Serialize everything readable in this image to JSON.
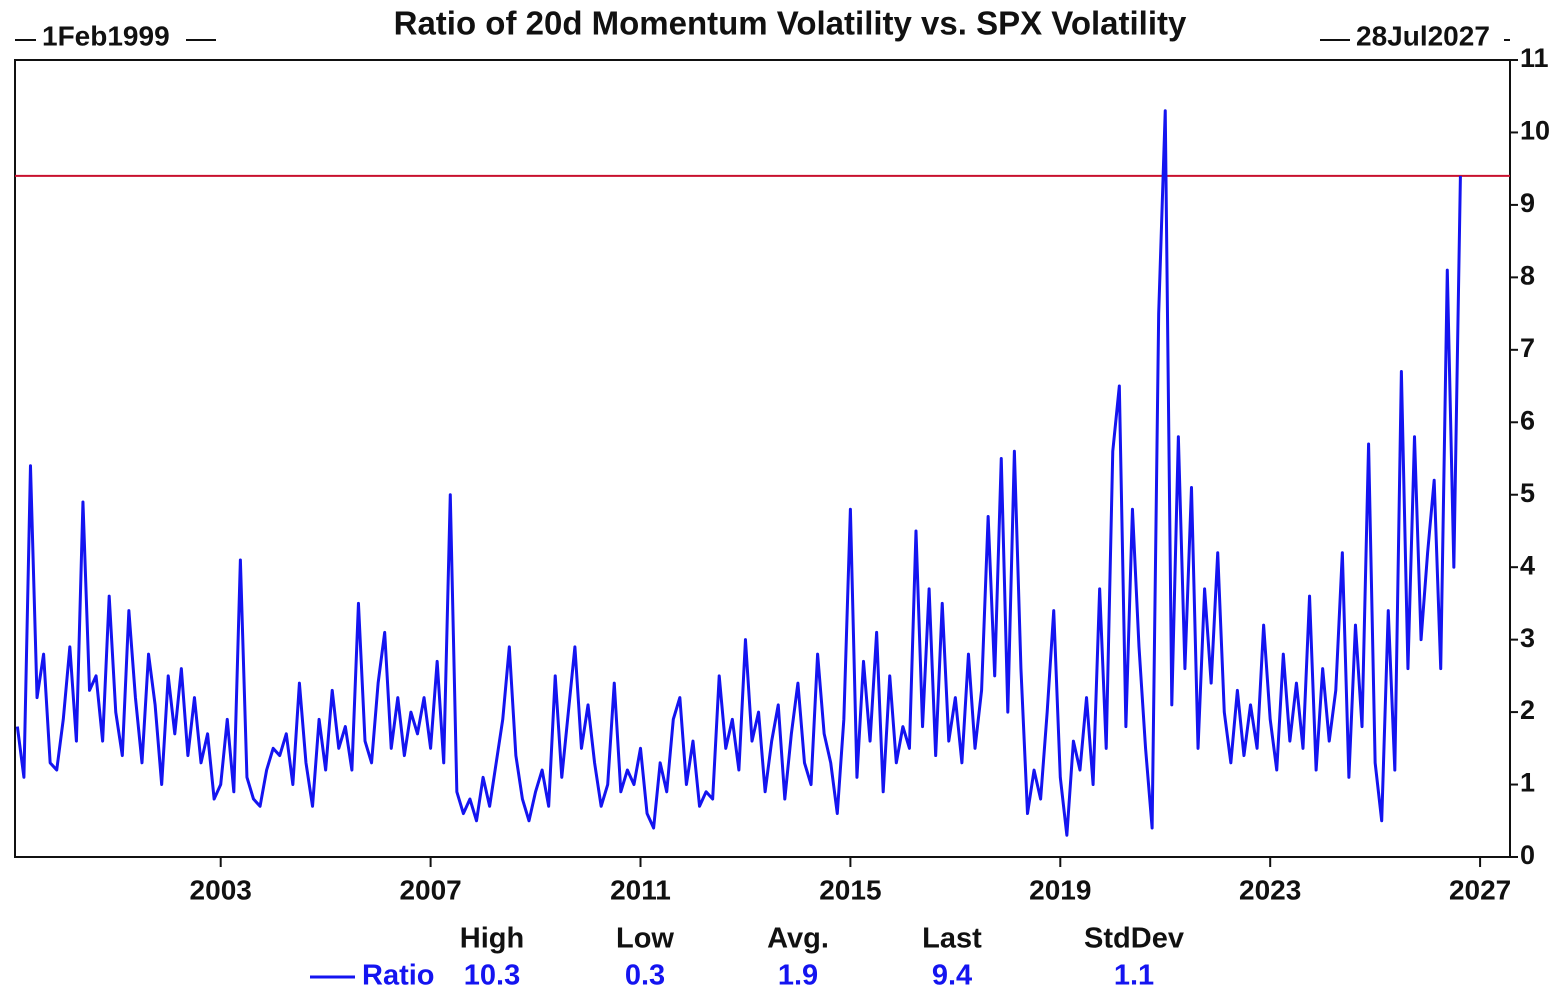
{
  "chart_data": {
    "type": "line",
    "title": "Ratio of 20d Momentum Volatility vs. SPX Volatility",
    "start_label": "1Feb1999",
    "end_label": "28Jul2027",
    "x": [
      1999.125,
      1999.25,
      1999.375,
      1999.5,
      1999.625,
      1999.75,
      1999.875,
      2000,
      2000.125,
      2000.25,
      2000.375,
      2000.5,
      2000.625,
      2000.75,
      2000.875,
      2001,
      2001.125,
      2001.25,
      2001.375,
      2001.5,
      2001.625,
      2001.75,
      2001.875,
      2002,
      2002.125,
      2002.25,
      2002.375,
      2002.5,
      2002.625,
      2002.75,
      2002.875,
      2003,
      2003.125,
      2003.25,
      2003.375,
      2003.5,
      2003.625,
      2003.75,
      2003.875,
      2004,
      2004.125,
      2004.25,
      2004.375,
      2004.5,
      2004.625,
      2004.75,
      2004.875,
      2005,
      2005.125,
      2005.25,
      2005.375,
      2005.5,
      2005.625,
      2005.75,
      2005.875,
      2006,
      2006.125,
      2006.25,
      2006.375,
      2006.5,
      2006.625,
      2006.75,
      2006.875,
      2007,
      2007.125,
      2007.25,
      2007.375,
      2007.5,
      2007.625,
      2007.75,
      2007.875,
      2008,
      2008.125,
      2008.25,
      2008.375,
      2008.5,
      2008.625,
      2008.75,
      2008.875,
      2009,
      2009.125,
      2009.25,
      2009.375,
      2009.5,
      2009.625,
      2009.75,
      2009.875,
      2010,
      2010.125,
      2010.25,
      2010.375,
      2010.5,
      2010.625,
      2010.75,
      2010.875,
      2011,
      2011.125,
      2011.25,
      2011.375,
      2011.5,
      2011.625,
      2011.75,
      2011.875,
      2012,
      2012.125,
      2012.25,
      2012.375,
      2012.5,
      2012.625,
      2012.75,
      2012.875,
      2013,
      2013.125,
      2013.25,
      2013.375,
      2013.5,
      2013.625,
      2013.75,
      2013.875,
      2014,
      2014.125,
      2014.25,
      2014.375,
      2014.5,
      2014.625,
      2014.75,
      2014.875,
      2015,
      2015.125,
      2015.25,
      2015.375,
      2015.5,
      2015.625,
      2015.75,
      2015.875,
      2016,
      2016.125,
      2016.25,
      2016.375,
      2016.5,
      2016.625,
      2016.75,
      2016.875,
      2017,
      2017.125,
      2017.25,
      2017.375,
      2017.5,
      2017.625,
      2017.75,
      2017.875,
      2018,
      2018.125,
      2018.25,
      2018.375,
      2018.5,
      2018.625,
      2018.75,
      2018.875,
      2019,
      2019.125,
      2019.25,
      2019.375,
      2019.5,
      2019.625,
      2019.75,
      2019.875,
      2020,
      2020.125,
      2020.25,
      2020.375,
      2020.5,
      2020.625,
      2020.75,
      2020.875,
      2021,
      2021.125,
      2021.25,
      2021.375,
      2021.5,
      2021.625,
      2021.75,
      2021.875,
      2022,
      2022.125,
      2022.25,
      2022.375,
      2022.5,
      2022.625,
      2022.75,
      2022.875,
      2023,
      2023.125,
      2023.25,
      2023.375,
      2023.5,
      2023.625,
      2023.75,
      2023.875,
      2024,
      2024.125,
      2024.25,
      2024.375,
      2024.5,
      2024.625,
      2024.75,
      2024.875,
      2025,
      2025.125,
      2025.25,
      2025.375,
      2025.5,
      2025.625,
      2025.75,
      2025.875,
      2026,
      2026.125,
      2026.25,
      2026.375,
      2026.5,
      2026.625
    ],
    "series": [
      {
        "name": "Ratio",
        "color": "#1414f0",
        "values": [
          1.8,
          1.1,
          5.4,
          2.2,
          2.8,
          1.3,
          1.2,
          1.9,
          2.9,
          1.6,
          4.9,
          2.3,
          2.5,
          1.6,
          3.6,
          2.0,
          1.4,
          3.4,
          2.2,
          1.3,
          2.8,
          2.1,
          1.0,
          2.5,
          1.7,
          2.6,
          1.4,
          2.2,
          1.3,
          1.7,
          0.8,
          1.0,
          1.9,
          0.9,
          4.1,
          1.1,
          0.8,
          0.7,
          1.2,
          1.5,
          1.4,
          1.7,
          1.0,
          2.4,
          1.3,
          0.7,
          1.9,
          1.2,
          2.3,
          1.5,
          1.8,
          1.2,
          3.5,
          1.6,
          1.3,
          2.4,
          3.1,
          1.5,
          2.2,
          1.4,
          2.0,
          1.7,
          2.2,
          1.5,
          2.7,
          1.3,
          5.0,
          0.9,
          0.6,
          0.8,
          0.5,
          1.1,
          0.7,
          1.3,
          1.9,
          2.9,
          1.4,
          0.8,
          0.5,
          0.9,
          1.2,
          0.7,
          2.5,
          1.1,
          2.0,
          2.9,
          1.5,
          2.1,
          1.3,
          0.7,
          1.0,
          2.4,
          0.9,
          1.2,
          1.0,
          1.5,
          0.6,
          0.4,
          1.3,
          0.9,
          1.9,
          2.2,
          1.0,
          1.6,
          0.7,
          0.9,
          0.8,
          2.5,
          1.5,
          1.9,
          1.2,
          3.0,
          1.6,
          2.0,
          0.9,
          1.6,
          2.1,
          0.8,
          1.7,
          2.4,
          1.3,
          1.0,
          2.8,
          1.7,
          1.3,
          0.6,
          1.9,
          4.8,
          1.1,
          2.7,
          1.6,
          3.1,
          0.9,
          2.5,
          1.3,
          1.8,
          1.5,
          4.5,
          1.8,
          3.7,
          1.4,
          3.5,
          1.6,
          2.2,
          1.3,
          2.8,
          1.5,
          2.3,
          4.7,
          2.5,
          5.5,
          2.0,
          5.6,
          2.6,
          0.6,
          1.2,
          0.8,
          2.0,
          3.4,
          1.1,
          0.3,
          1.6,
          1.2,
          2.2,
          1.0,
          3.7,
          1.5,
          5.6,
          6.5,
          1.8,
          4.8,
          2.9,
          1.5,
          0.4,
          7.5,
          10.3,
          2.1,
          5.8,
          2.6,
          5.1,
          1.5,
          3.7,
          2.4,
          4.2,
          2.0,
          1.3,
          2.3,
          1.4,
          2.1,
          1.5,
          3.2,
          1.9,
          1.2,
          2.8,
          1.6,
          2.4,
          1.5,
          3.6,
          1.2,
          2.6,
          1.6,
          2.3,
          4.2,
          1.1,
          3.2,
          1.8,
          5.7,
          1.3,
          0.5,
          3.4,
          1.2,
          6.7,
          2.6,
          5.8,
          3.0,
          4.2,
          5.2,
          2.6,
          8.1,
          4.0,
          9.4
        ]
      }
    ],
    "xlim": [
      1999.08,
      2027.57
    ],
    "xticks": [
      2003,
      2007,
      2011,
      2015,
      2019,
      2023,
      2027
    ],
    "ylim": [
      0,
      11
    ],
    "yticks": [
      0,
      1,
      2,
      3,
      4,
      5,
      6,
      7,
      8,
      9,
      10,
      11
    ],
    "reference_line": {
      "value": 9.4,
      "color": "#c8102e"
    },
    "stats": {
      "headers": [
        "High",
        "Low",
        "Avg.",
        "Last",
        "StdDev"
      ],
      "values": [
        10.3,
        0.3,
        1.9,
        9.4,
        1.1
      ]
    }
  }
}
